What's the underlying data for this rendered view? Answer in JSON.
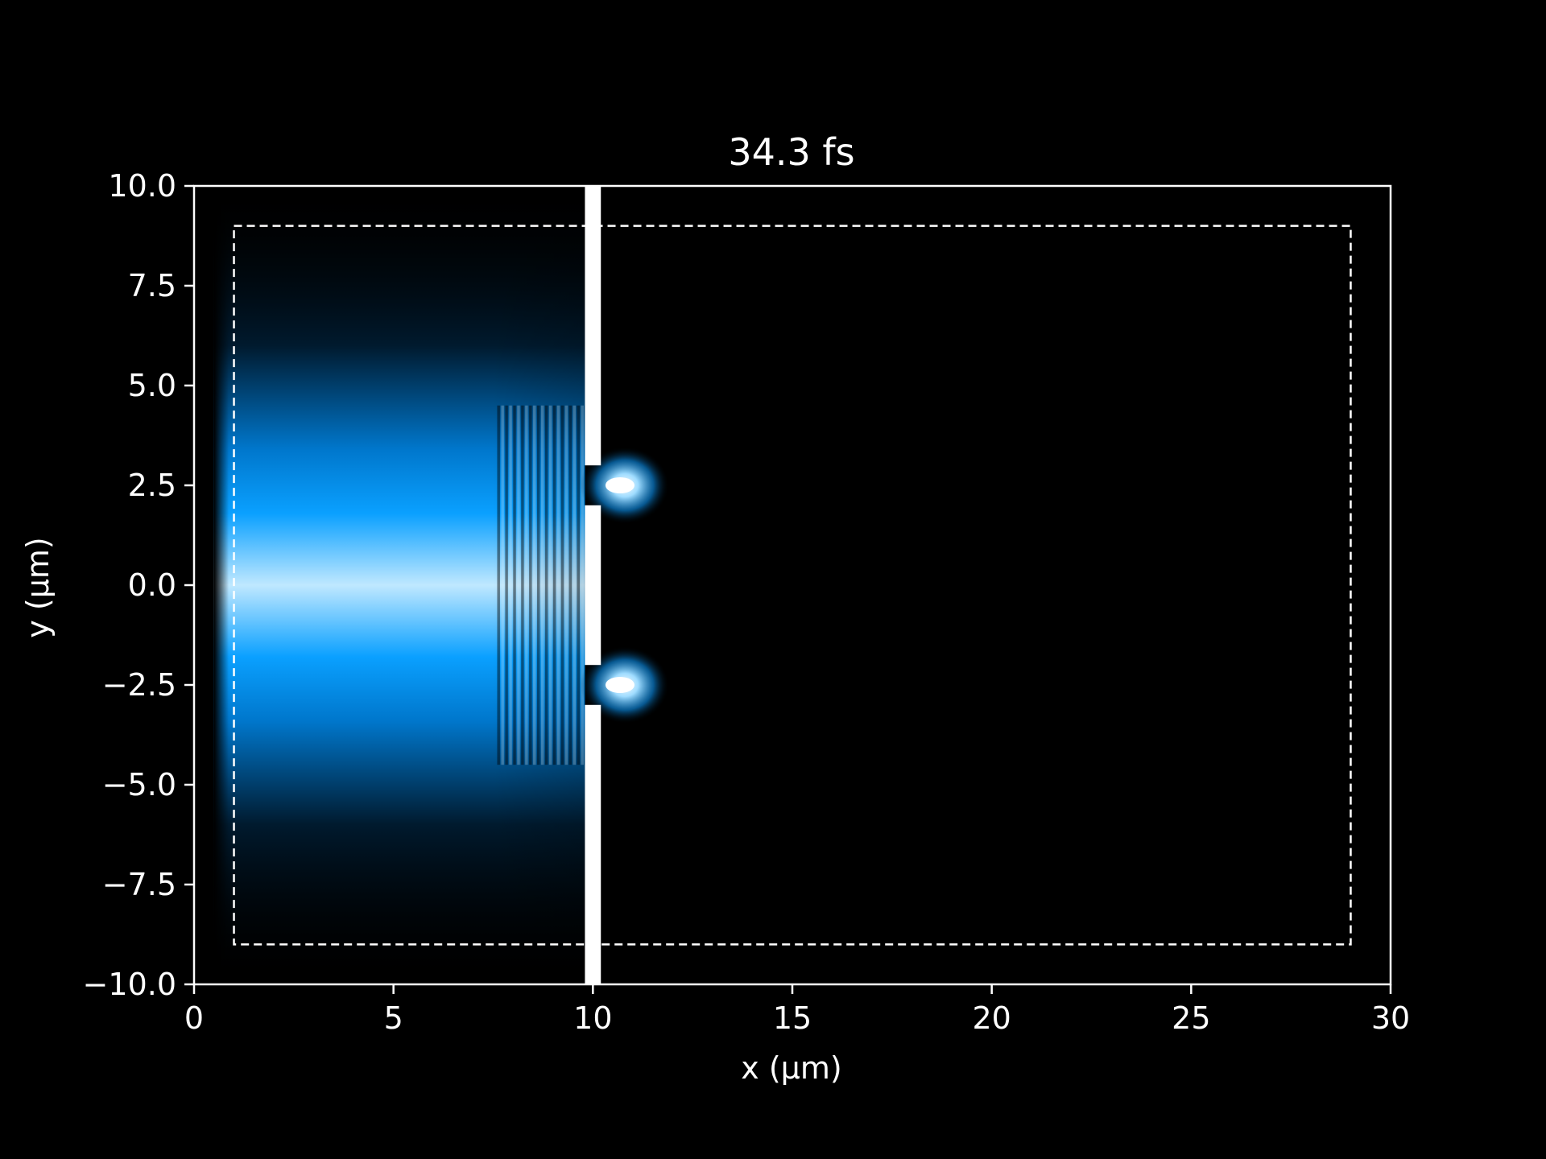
{
  "chart_data": {
    "type": "heatmap",
    "title": "34.3 fs",
    "xlabel": "x (μm)",
    "ylabel": "y (μm)",
    "xlim": [
      0,
      30
    ],
    "ylim": [
      -10.0,
      10.0
    ],
    "x_ticks": [
      0,
      5,
      10,
      15,
      20,
      25,
      30
    ],
    "x_tick_labels": [
      "0",
      "5",
      "10",
      "15",
      "20",
      "25",
      "30"
    ],
    "y_ticks": [
      10.0,
      7.5,
      5.0,
      2.5,
      0.0,
      -2.5,
      -5.0,
      -7.5,
      -10.0
    ],
    "y_tick_labels": [
      "10.0",
      "7.5",
      "5.0",
      "2.5",
      "0.0",
      "−2.5",
      "−5.0",
      "−7.5",
      "−10.0"
    ],
    "grid": false,
    "colormap": [
      "#000000",
      "#003a66",
      "#0096ff",
      "#bfe8ff",
      "#ffffff"
    ],
    "background_color": "#000000",
    "foreground_color": "#ffffff",
    "wave_field": {
      "source_x": 0.5,
      "front_x": 9.8,
      "beam_center_y": 0.0,
      "beam_width_y": 4.5
    },
    "barrier": {
      "x_from": 9.8,
      "x_to": 10.2,
      "slit_centers_y": [
        2.5,
        -2.5
      ],
      "slit_width": 1.0
    },
    "diffraction_spots": [
      {
        "x": 10.8,
        "y": 2.5
      },
      {
        "x": 10.8,
        "y": -2.5
      }
    ],
    "dashed_box": {
      "x": [
        1.0,
        29.0
      ],
      "y": [
        -9.0,
        9.0
      ]
    }
  }
}
